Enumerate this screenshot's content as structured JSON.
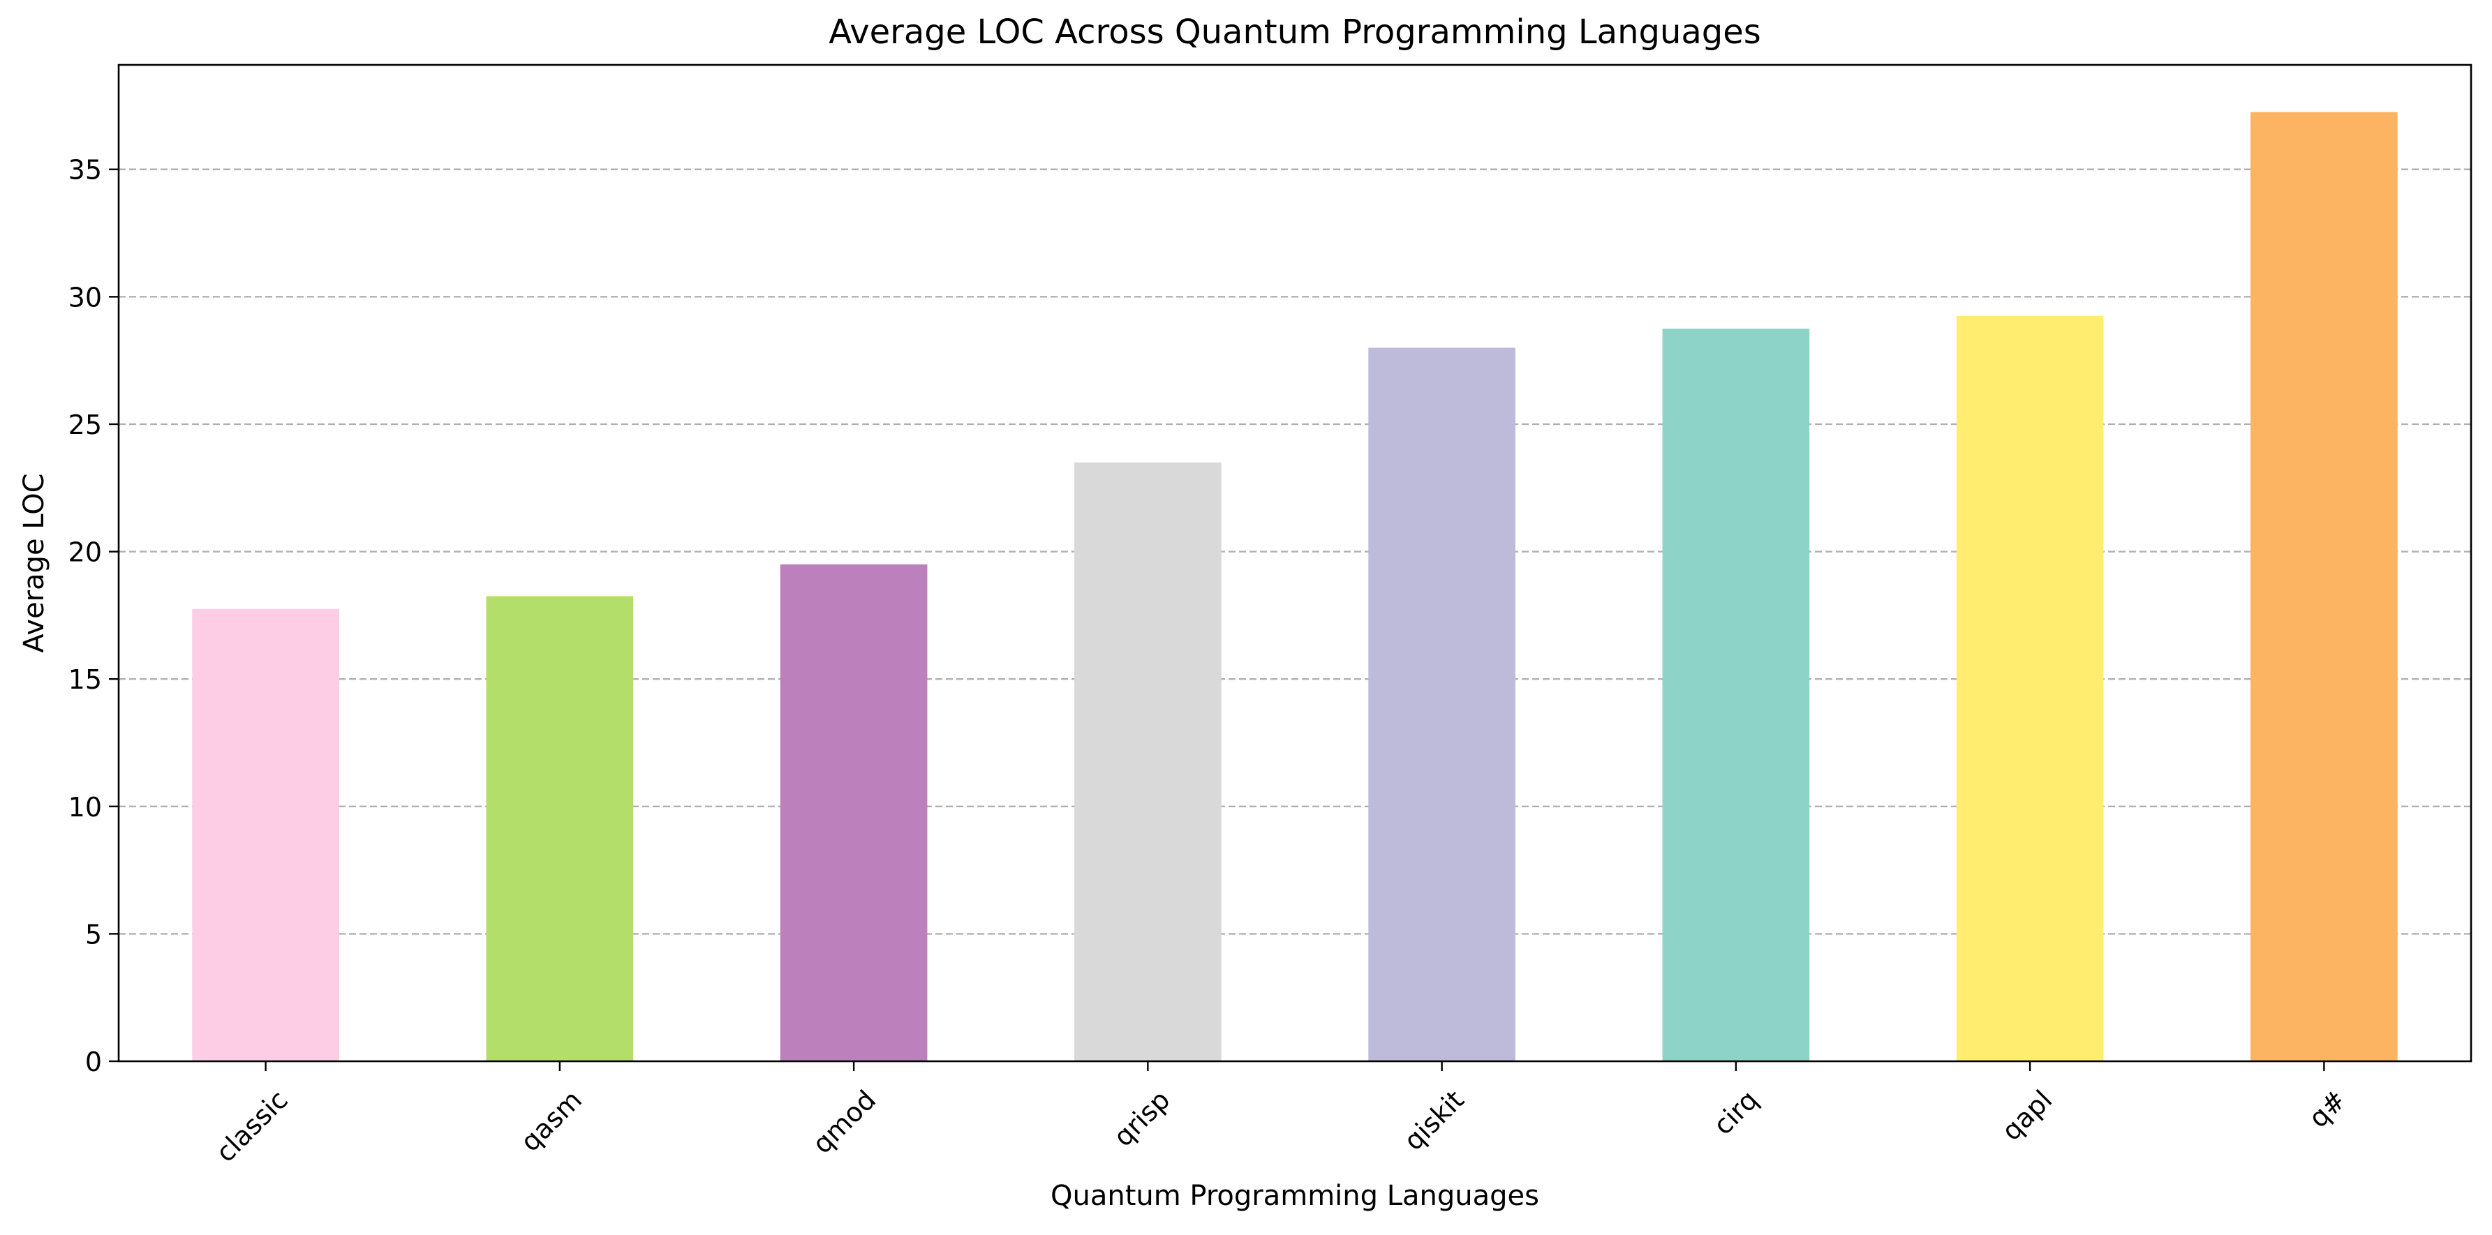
{
  "chart_data": {
    "type": "bar",
    "title": "Average LOC Across Quantum Programming Languages",
    "xlabel": "Quantum Programming Languages",
    "ylabel": "Average LOC",
    "categories": [
      "classic",
      "qasm",
      "qmod",
      "qrisp",
      "qiskit",
      "cirq",
      "qapl",
      "q#"
    ],
    "values": [
      17.75,
      18.25,
      19.5,
      23.5,
      28.0,
      28.75,
      29.25,
      37.25
    ],
    "colors": [
      "#fccde5",
      "#b3de69",
      "#bc80bd",
      "#d9d9d9",
      "#bebada",
      "#8dd3c7",
      "#ffed6f",
      "#fdb462"
    ],
    "ylim": [
      0,
      39.1
    ],
    "yticks": [
      0,
      5,
      10,
      15,
      20,
      25,
      30,
      35
    ],
    "xtick_rotation": "45 degrees",
    "grid": "horizontal dashed",
    "legend": "none"
  }
}
